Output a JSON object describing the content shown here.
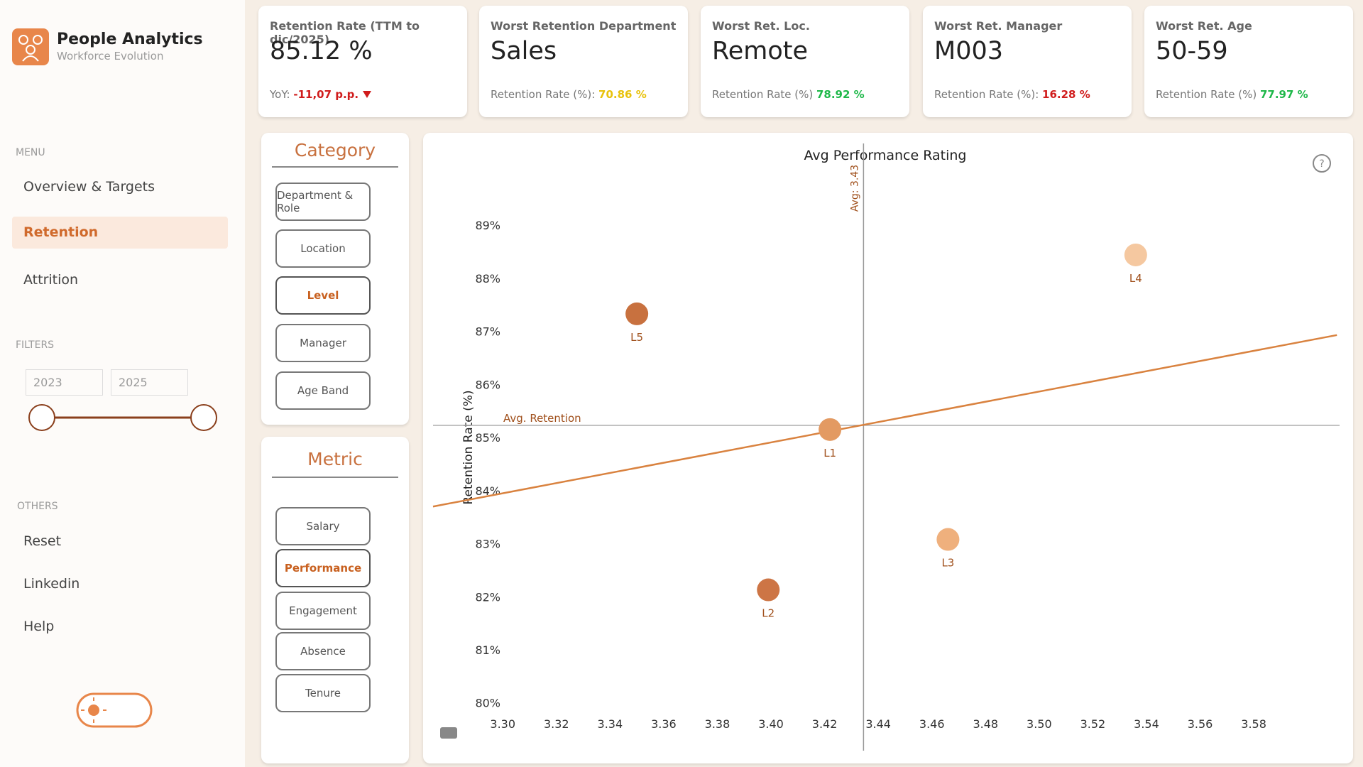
{
  "sidebar": {
    "title": "People Analytics",
    "subtitle": "Workforce Evolution",
    "menu_heading": "MENU",
    "menu": [
      "Overview & Targets",
      "Retention",
      "Attrition"
    ],
    "filters_heading": "FILTERS",
    "filter_from": "2023",
    "filter_to": "2025",
    "others_heading": "OTHERS",
    "others": [
      "Reset",
      "Linkedin",
      "Help"
    ]
  },
  "kpis": [
    {
      "title": "Retention Rate (TTM to dic/2025)",
      "value": "85.12 %",
      "sub_label": "YoY: ",
      "sub_value": "-11,07 p.p.",
      "sub_color": "#d01c1c"
    },
    {
      "title": "Worst Retention Department",
      "value": "Sales",
      "sub_label": "Retention Rate (%): ",
      "sub_value": "70.86 %",
      "sub_color": "#e8c20c"
    },
    {
      "title": "Worst Ret. Loc.",
      "value": "Remote",
      "sub_label": "Retention Rate (%) ",
      "sub_value": "78.92 %",
      "sub_color": "#1fb84a"
    },
    {
      "title": "Worst Ret. Manager",
      "value": "M003",
      "sub_label": "Retention Rate (%): ",
      "sub_value": "16.28 %",
      "sub_color": "#d01c1c"
    },
    {
      "title": "Worst Ret. Age",
      "value": "50-59",
      "sub_label": "Retention Rate (%) ",
      "sub_value": "77.97 %",
      "sub_color": "#1fb84a"
    }
  ],
  "category_panel": {
    "title": "Category",
    "buttons": [
      "Department & Role",
      "Location",
      "Level",
      "Manager",
      "Age Band"
    ]
  },
  "metric_panel": {
    "title": "Metric",
    "buttons": [
      "Salary",
      "Performance",
      "Engagement",
      "Absence",
      "Tenure"
    ]
  },
  "chart_data": {
    "type": "scatter",
    "title": "Avg Performance Rating",
    "y_label": "Retention Rate (%)",
    "points": [
      {
        "label": "L1",
        "x": 3.422,
        "y": 85.15,
        "color": "#e39a62"
      },
      {
        "label": "L2",
        "x": 3.399,
        "y": 82.13,
        "color": "#cd7545"
      },
      {
        "label": "L3",
        "x": 3.466,
        "y": 83.08,
        "color": "#efb07d"
      },
      {
        "label": "L4",
        "x": 3.536,
        "y": 88.44,
        "color": "#f5c8a0"
      },
      {
        "label": "L5",
        "x": 3.35,
        "y": 87.33,
        "color": "#c8713f"
      }
    ],
    "avg_x": 3.4345,
    "avg_x_label": "Avg: 3.43",
    "avg_y": 85.23,
    "avg_y_label": "Avg. Retention",
    "trendline": {
      "x": [
        3.274,
        3.611
      ],
      "y": [
        83.7,
        86.93
      ],
      "color": "#d9823f"
    },
    "xlim": [
      3.274,
      3.612
    ],
    "ylim": [
      79.1,
      90.5
    ],
    "xticks": [
      {
        "value": 3.3,
        "label": "3.30"
      },
      {
        "value": 3.32,
        "label": "3.32"
      },
      {
        "value": 3.34,
        "label": "3.34"
      },
      {
        "value": 3.36,
        "label": "3.36"
      },
      {
        "value": 3.38,
        "label": "3.38"
      },
      {
        "value": 3.4,
        "label": "3.40"
      },
      {
        "value": 3.42,
        "label": "3.42"
      },
      {
        "value": 3.44,
        "label": "3.44"
      },
      {
        "value": 3.46,
        "label": "3.46"
      },
      {
        "value": 3.48,
        "label": "3.48"
      },
      {
        "value": 3.5,
        "label": "3.50"
      },
      {
        "value": 3.52,
        "label": "3.52"
      },
      {
        "value": 3.54,
        "label": "3.54"
      },
      {
        "value": 3.56,
        "label": "3.56"
      },
      {
        "value": 3.58,
        "label": "3.58"
      }
    ],
    "yticks": [
      {
        "value": 80,
        "label": "80%"
      },
      {
        "value": 81,
        "label": "81%"
      },
      {
        "value": 82,
        "label": "82%"
      },
      {
        "value": 83,
        "label": "83%"
      },
      {
        "value": 84,
        "label": "84%"
      },
      {
        "value": 85,
        "label": "85%"
      },
      {
        "value": 86,
        "label": "86%"
      },
      {
        "value": 87,
        "label": "87%"
      },
      {
        "value": 88,
        "label": "88%"
      },
      {
        "value": 89,
        "label": "89%"
      }
    ]
  }
}
